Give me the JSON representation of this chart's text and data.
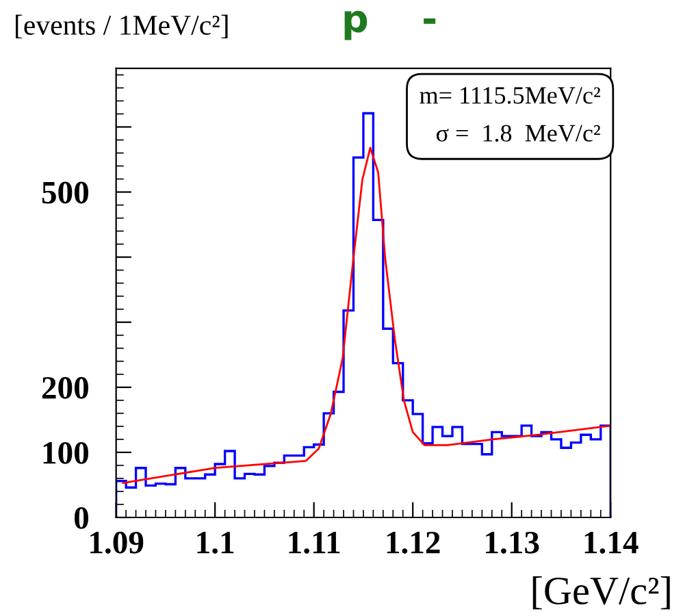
{
  "chart_data": {
    "type": "histogram",
    "title": "p    -",
    "ylabel": "[events / 1MeV/c²]",
    "xlabel": "[GeV/c²]",
    "annotations": [
      "m= 1115.5MeV/c²",
      "σ =  1.8  MeV/c²"
    ],
    "bins": [
      1.09,
      1.091,
      1.092,
      1.093,
      1.094,
      1.095,
      1.096,
      1.097,
      1.098,
      1.099,
      1.1,
      1.101,
      1.102,
      1.103,
      1.104,
      1.105,
      1.106,
      1.107,
      1.108,
      1.109,
      1.11,
      1.111,
      1.112,
      1.113,
      1.114,
      1.115,
      1.116,
      1.117,
      1.118,
      1.119,
      1.12,
      1.121,
      1.122,
      1.123,
      1.124,
      1.125,
      1.126,
      1.127,
      1.128,
      1.129,
      1.13,
      1.131,
      1.132,
      1.133,
      1.134,
      1.135,
      1.136,
      1.137,
      1.138,
      1.139,
      1.14
    ],
    "series": [
      {
        "color": "#0000ff",
        "values": [
          56,
          46,
          76,
          49,
          52,
          51,
          76,
          60,
          60,
          66,
          82,
          102,
          60,
          67,
          66,
          79,
          84,
          95,
          95,
          108,
          112,
          160,
          193,
          318,
          553,
          621,
          457,
          290,
          237,
          180,
          159,
          114,
          139,
          125,
          139,
          113,
          113,
          97,
          131,
          125,
          125,
          141,
          125,
          131,
          120,
          107,
          115,
          127,
          120,
          141
        ]
      },
      {
        "type": "line",
        "color": "#ff0000",
        "x": [
          1.0907,
          1.1,
          1.1092,
          1.1105,
          1.1117,
          1.1129,
          1.114,
          1.1149,
          1.1157,
          1.1165,
          1.1172,
          1.1182,
          1.1191,
          1.12,
          1.1212,
          1.1235,
          1.1281,
          1.1327,
          1.14
        ],
        "values": [
          53,
          76,
          87,
          106,
          159,
          244,
          399,
          519,
          568,
          530,
          399,
          272,
          180,
          131,
          111,
          111,
          120,
          127,
          141
        ]
      }
    ],
    "xlim": [
      1.09,
      1.14
    ],
    "xticks": [
      1.09,
      1.1,
      1.11,
      1.12,
      1.13,
      1.14
    ],
    "ylim": [
      0,
      690
    ],
    "yticks": [
      0,
      100,
      200,
      {
        "value": 300,
        "label": null
      },
      {
        "value": 400,
        "label": null
      },
      500,
      {
        "value": 600,
        "label": null
      }
    ],
    "grid": false,
    "legend": false
  }
}
